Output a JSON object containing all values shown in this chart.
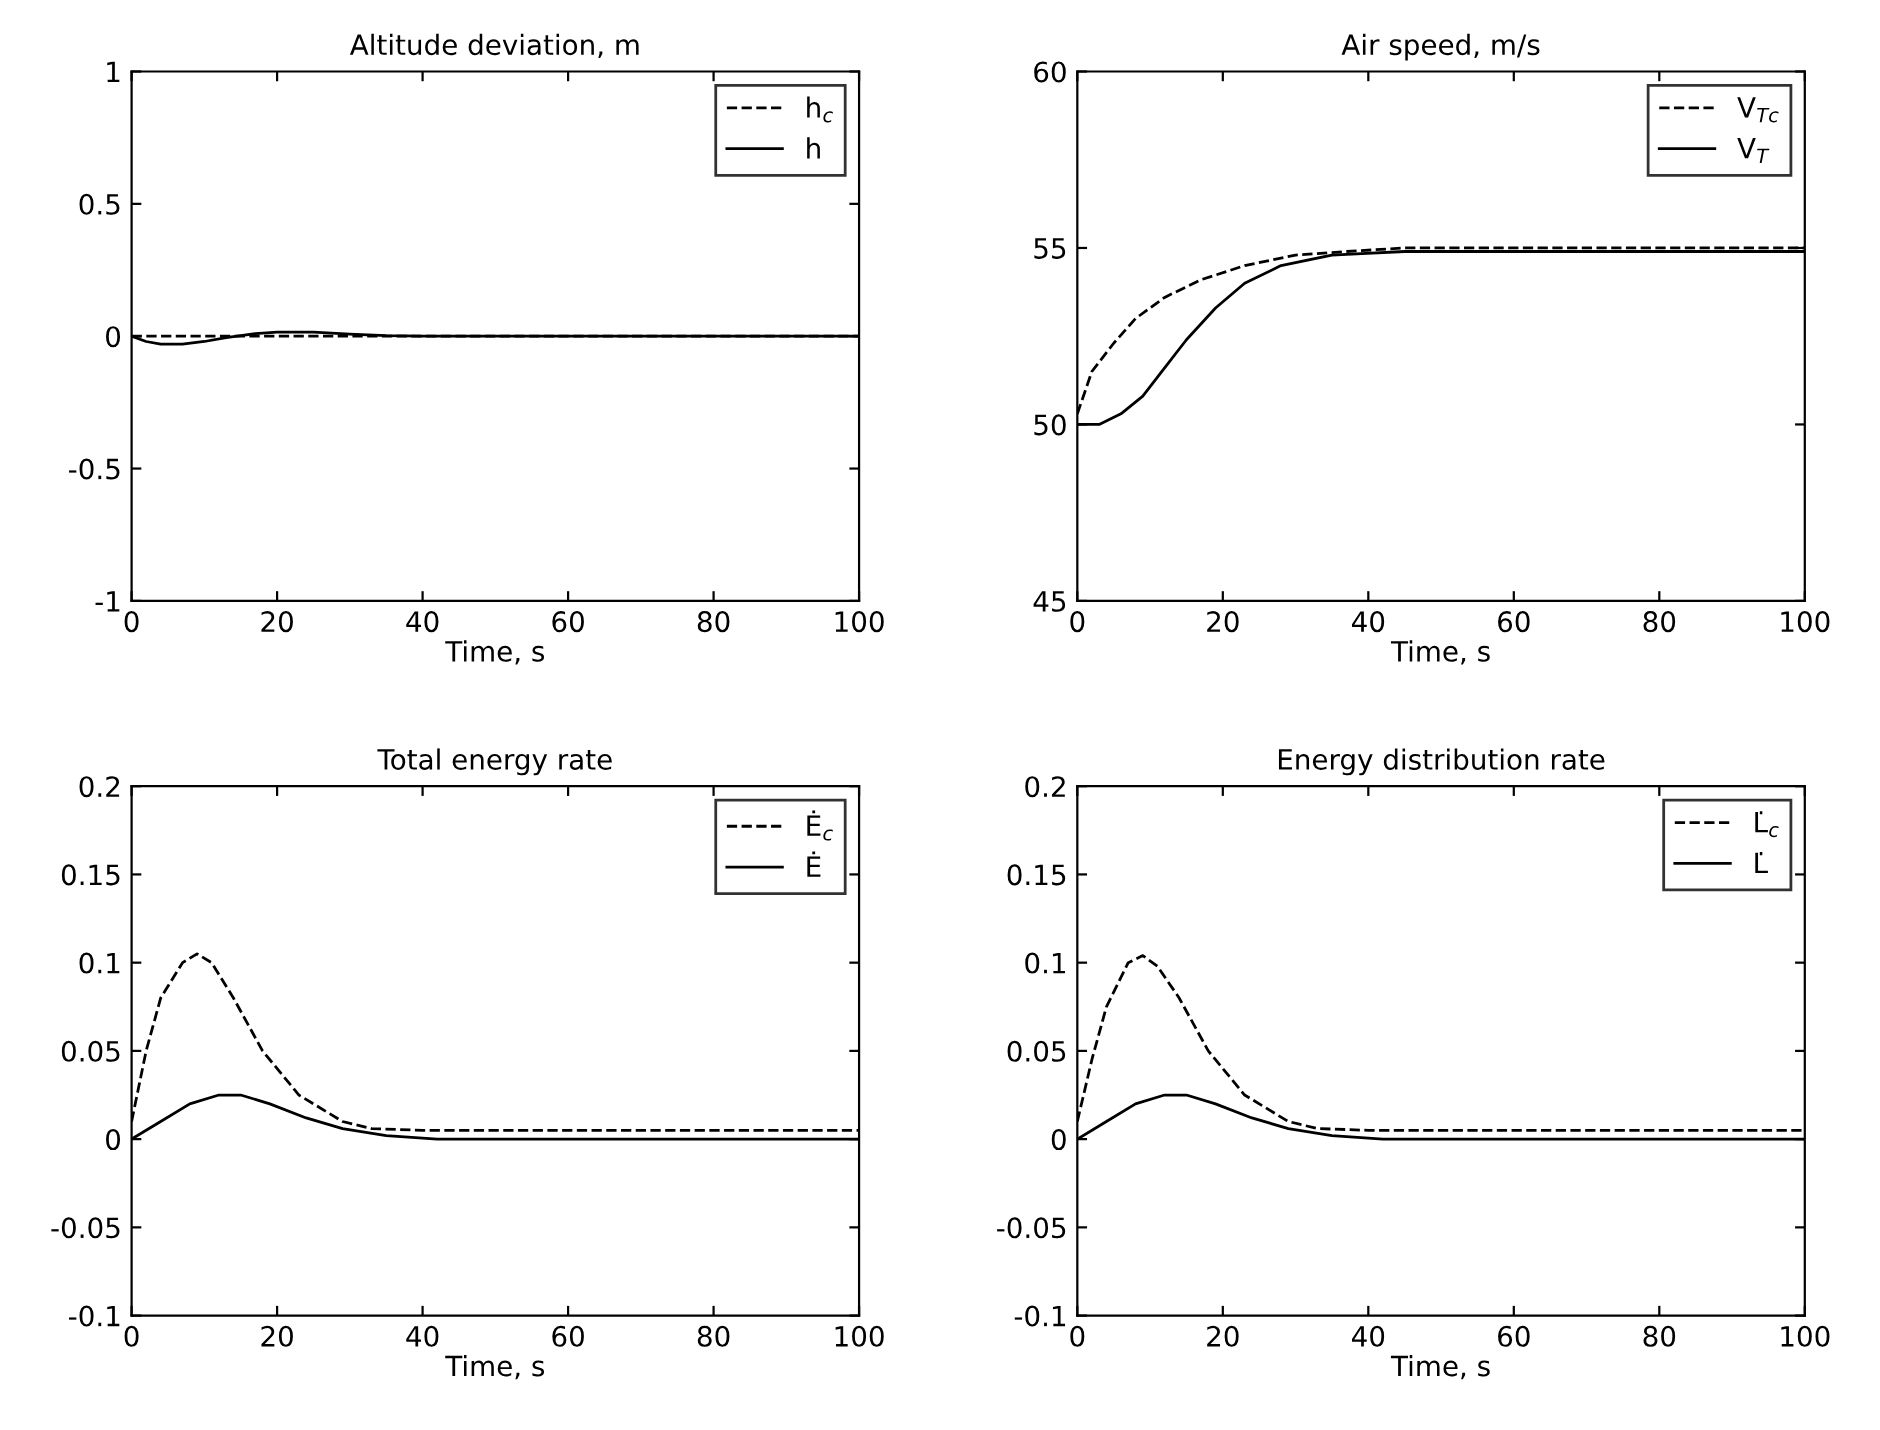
{
  "chart_data": [
    {
      "type": "line",
      "title": "Altitude deviation, m",
      "xlabel": "Time, s",
      "xlim": [
        0,
        100
      ],
      "xticks": [
        0,
        20,
        40,
        60,
        80,
        100
      ],
      "ylim": [
        -1,
        1
      ],
      "yticks": [
        -1,
        -0.5,
        0,
        0.5,
        1
      ],
      "legend": "top right",
      "series": [
        {
          "name": "h$_{c}$",
          "color": "#000000",
          "line_style": "dashed",
          "x": [
            0,
            35,
            100
          ],
          "values": [
            0,
            0,
            0
          ]
        },
        {
          "name": "h",
          "color": "#000000",
          "line_style": "solid",
          "x": [
            0,
            2,
            4,
            7,
            10,
            13,
            17,
            20,
            25,
            30,
            35,
            40,
            100
          ],
          "values": [
            0,
            -0.02,
            -0.03,
            -0.03,
            -0.02,
            -0.005,
            0.01,
            0.015,
            0.015,
            0.008,
            0.002,
            0,
            0
          ]
        }
      ]
    },
    {
      "type": "line",
      "title": "Air speed, m/s",
      "xlabel": "Time, s",
      "xlim": [
        0,
        100
      ],
      "xticks": [
        0,
        20,
        40,
        60,
        80,
        100
      ],
      "ylim": [
        45,
        60
      ],
      "yticks": [
        45,
        50,
        55,
        60
      ],
      "legend": "top right",
      "series": [
        {
          "name": "V$_{Tc}$",
          "color": "#000000",
          "line_style": "dashed",
          "x": [
            0,
            2,
            5,
            8,
            12,
            17,
            23,
            30,
            37,
            45,
            100
          ],
          "values": [
            50.3,
            51.5,
            52.3,
            53,
            53.6,
            54.1,
            54.5,
            54.8,
            54.9,
            55,
            55
          ]
        },
        {
          "name": "V$_{T}$",
          "color": "#000000",
          "line_style": "solid",
          "x": [
            0,
            3,
            6,
            9,
            12,
            15,
            19,
            23,
            28,
            35,
            45,
            100
          ],
          "values": [
            50,
            50,
            50.3,
            50.8,
            51.6,
            52.4,
            53.3,
            54,
            54.5,
            54.8,
            54.9,
            54.9
          ]
        }
      ]
    },
    {
      "type": "line",
      "title": "Total energy rate",
      "xlabel": "Time, s",
      "xlim": [
        0,
        100
      ],
      "xticks": [
        0,
        20,
        40,
        60,
        80,
        100
      ],
      "ylim": [
        -0.1,
        0.2
      ],
      "yticks": [
        -0.1,
        -0.05,
        0,
        0.05,
        0.1,
        0.15,
        0.2
      ],
      "legend": "top right",
      "series": [
        {
          "name": "Ė$_{c}$",
          "color": "#000000",
          "line_style": "dashed",
          "x": [
            0,
            2,
            4,
            7,
            9,
            11,
            14,
            18,
            23,
            29,
            33,
            40,
            100
          ],
          "values": [
            0.01,
            0.05,
            0.08,
            0.1,
            0.105,
            0.1,
            0.08,
            0.05,
            0.025,
            0.01,
            0.006,
            0.005,
            0.005
          ]
        },
        {
          "name": "Ė",
          "color": "#000000",
          "line_style": "solid",
          "x": [
            0,
            4,
            8,
            12,
            15,
            19,
            24,
            29,
            35,
            42,
            100
          ],
          "values": [
            0,
            0.01,
            0.02,
            0.025,
            0.025,
            0.02,
            0.012,
            0.006,
            0.002,
            0,
            0
          ]
        }
      ]
    },
    {
      "type": "line",
      "title": "Energy distribution rate",
      "xlabel": "Time, s",
      "xlim": [
        0,
        100
      ],
      "xticks": [
        0,
        20,
        40,
        60,
        80,
        100
      ],
      "ylim": [
        -0.1,
        0.2
      ],
      "yticks": [
        -0.1,
        -0.05,
        0,
        0.05,
        0.1,
        0.15,
        0.2
      ],
      "legend": "top right",
      "series": [
        {
          "name": "L̇$_{c}$",
          "color": "#000000",
          "line_style": "dashed",
          "x": [
            0,
            2,
            4,
            7,
            9,
            11,
            14,
            18,
            23,
            29,
            33,
            40,
            100
          ],
          "values": [
            0.01,
            0.045,
            0.075,
            0.1,
            0.104,
            0.098,
            0.08,
            0.05,
            0.025,
            0.01,
            0.006,
            0.005,
            0.005
          ]
        },
        {
          "name": "L̇",
          "color": "#000000",
          "line_style": "solid",
          "x": [
            0,
            4,
            8,
            12,
            15,
            19,
            24,
            29,
            35,
            42,
            100
          ],
          "values": [
            0,
            0.01,
            0.02,
            0.025,
            0.025,
            0.02,
            0.012,
            0.006,
            0.002,
            0,
            0
          ]
        }
      ]
    }
  ]
}
